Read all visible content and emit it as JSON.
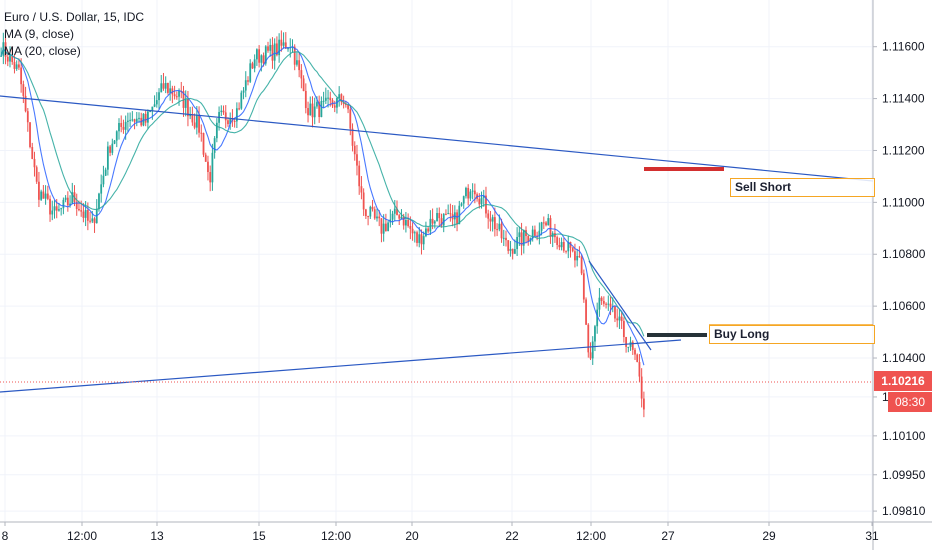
{
  "header": {
    "title": "Euro / U.S. Dollar, 15, IDC",
    "indicators": [
      "MA (9, close)",
      "MA (20, close)"
    ]
  },
  "colors": {
    "up": "#26a69a",
    "down": "#ef5350",
    "ma9": "#2962ff",
    "ma20": "#26a69a",
    "trendline": "#2b59c3",
    "sell_line": "#d32f2f",
    "buy_line": "#263238",
    "label_border": "#f5a623",
    "price_tag": "#ef5350",
    "time_tag": "#ef5350"
  },
  "current": {
    "price": "1.10216",
    "time": "08:30"
  },
  "annotations": {
    "sell": "Sell Short",
    "buy": "Buy Long"
  },
  "chart_data": {
    "type": "candlestick",
    "title": "Euro / U.S. Dollar, 15, IDC",
    "y_ticks": [
      "1.11600",
      "1.11400",
      "1.11200",
      "1.11000",
      "1.10800",
      "1.10600",
      "1.10400",
      "1.10250",
      "1.10100",
      "1.09950",
      "1.09810"
    ],
    "y_tick_values": [
      1.116,
      1.114,
      1.112,
      1.11,
      1.108,
      1.106,
      1.104,
      1.1025,
      1.101,
      1.0995,
      1.0981
    ],
    "x_ticks": [
      "8",
      "12:00",
      "13",
      "15",
      "12:00",
      "20",
      "22",
      "12:00",
      "27",
      "29",
      "31"
    ],
    "ylim": [
      1.0966,
      1.1178
    ],
    "price_path": [
      [
        0,
        1.116
      ],
      [
        2,
        1.115
      ],
      [
        4,
        1.1105
      ],
      [
        6,
        1.1095
      ],
      [
        8,
        1.1102
      ],
      [
        10,
        1.109
      ],
      [
        12,
        1.1122
      ],
      [
        14,
        1.1133
      ],
      [
        16,
        1.1131
      ],
      [
        18,
        1.1145
      ],
      [
        20,
        1.114
      ],
      [
        22,
        1.1128
      ],
      [
        23,
        1.1108
      ],
      [
        24,
        1.1132
      ],
      [
        26,
        1.1135
      ],
      [
        28,
        1.1156
      ],
      [
        30,
        1.1158
      ],
      [
        32,
        1.1162
      ],
      [
        34,
        1.1135
      ],
      [
        36,
        1.1137
      ],
      [
        38,
        1.114
      ],
      [
        40,
        1.1098
      ],
      [
        42,
        1.109
      ],
      [
        44,
        1.1096
      ],
      [
        46,
        1.1085
      ],
      [
        48,
        1.1095
      ],
      [
        50,
        1.1092
      ],
      [
        52,
        1.1108
      ],
      [
        54,
        1.1095
      ],
      [
        56,
        1.1082
      ],
      [
        58,
        1.1087
      ],
      [
        60,
        1.1092
      ],
      [
        62,
        1.1085
      ],
      [
        64,
        1.1075
      ],
      [
        65,
        1.1038
      ],
      [
        66,
        1.1062
      ],
      [
        68,
        1.1055
      ],
      [
        70,
        1.104
      ],
      [
        71,
        1.1022
      ]
    ],
    "ma9": "blue moving average following price",
    "ma20": "teal moving average following price",
    "trendlines": [
      {
        "name": "descending resistance",
        "from_price": 1.1133,
        "to_price": 1.11
      },
      {
        "name": "ascending support",
        "from_price": 1.1018,
        "to_price": 1.1038
      },
      {
        "name": "short drop line",
        "from_price": 1.1072,
        "to_price": 1.1035
      }
    ],
    "levels": [
      {
        "name": "Sell Short",
        "price": 1.1105
      },
      {
        "name": "Buy Long",
        "price": 1.104
      }
    ],
    "current_price": 1.10216,
    "grid": true
  }
}
